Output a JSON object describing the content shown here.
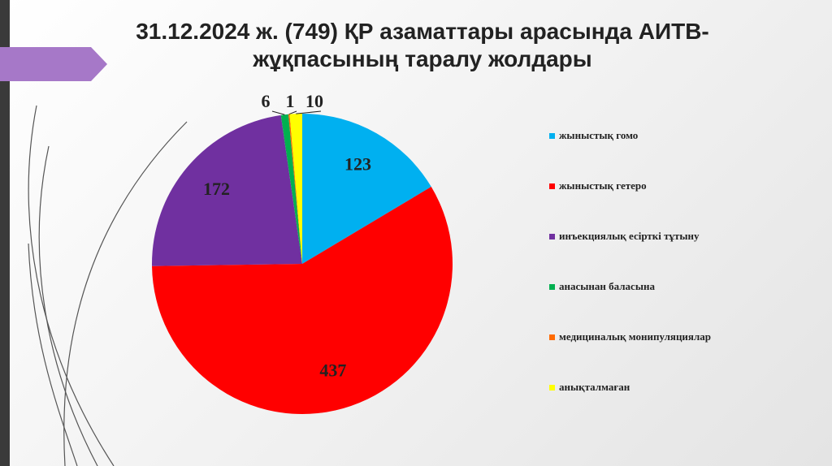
{
  "chart_data": {
    "type": "pie",
    "title": "31.12.2024 ж. (749) ҚР азаматтары арасында АИТВ-жұқпасының таралу жолдары",
    "categories": [
      "жыныстық гомо",
      "жыныстық гетеро",
      "инъекциялық есірткі тұтыну",
      "анасынан баласына",
      "медициналық монипуляциялар",
      "анықталмаған"
    ],
    "values": [
      123,
      437,
      172,
      6,
      1,
      10
    ],
    "colors": [
      "#00b0f0",
      "#ff0000",
      "#7030a0",
      "#00b050",
      "#ff6a00",
      "#ffff00"
    ],
    "legend": "right"
  }
}
